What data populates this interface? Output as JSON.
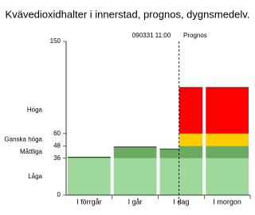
{
  "chart_data": {
    "type": "bar",
    "title": "Kvävedioxidhalter i innerstad, prognos, dygnsmedelv.",
    "annotations": [
      "090331 11:00",
      "Prognos"
    ],
    "categories": [
      "I förrgår",
      "I går",
      "I dag",
      "I morgon"
    ],
    "values": [
      37,
      47,
      45,
      null
    ],
    "forecast": [
      null,
      null,
      105,
      105
    ],
    "bands": [
      {
        "label": "Låga",
        "from": 0,
        "to": 36,
        "color": "#9fd89b"
      },
      {
        "label": "Måttliga",
        "from": 36,
        "to": 48,
        "color": "#6aab62"
      },
      {
        "label": "Ganska höga",
        "from": 48,
        "to": 60,
        "color": "#ffcc00"
      },
      {
        "label": "Höga",
        "from": 60,
        "to": 150,
        "color": "#ff0000"
      }
    ],
    "ylim": [
      0,
      150
    ],
    "yticks": [
      0,
      36,
      48,
      60,
      150
    ]
  }
}
